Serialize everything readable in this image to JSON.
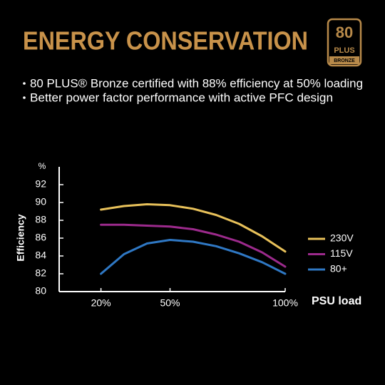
{
  "header": {
    "title": "ENERGY CONSERVATION",
    "badge": [
      "80",
      "PLUS",
      "BRONZE"
    ]
  },
  "bullets": [
    "80 PLUS® Bronze certified with 88% efficiency at 50% loading",
    "Better power factor performance with active PFC design"
  ],
  "chart_data": {
    "type": "line",
    "y_label": "Efficiency",
    "y_unit": "%",
    "x_label": "PSU load",
    "x": [
      20,
      30,
      40,
      50,
      60,
      70,
      80,
      90,
      100
    ],
    "xlim": [
      0,
      100
    ],
    "xticks": [
      {
        "value": 20,
        "label": "20%"
      },
      {
        "value": 50,
        "label": "50%"
      },
      {
        "value": 100,
        "label": "100%"
      }
    ],
    "ylim": [
      80,
      94
    ],
    "yticks": [
      80,
      82,
      84,
      86,
      88,
      90,
      92
    ],
    "legend": "right",
    "series": [
      {
        "name": "230V",
        "color": "#e8c15a",
        "values": [
          89.2,
          89.6,
          89.8,
          89.7,
          89.3,
          88.6,
          87.6,
          86.2,
          84.5
        ]
      },
      {
        "name": "115V",
        "color": "#9c2a8c",
        "values": [
          87.5,
          87.5,
          87.4,
          87.3,
          87.0,
          86.4,
          85.6,
          84.4,
          82.8
        ]
      },
      {
        "name": "80+",
        "color": "#2f78c4",
        "values": [
          82.0,
          84.2,
          85.4,
          85.8,
          85.6,
          85.1,
          84.3,
          83.3,
          82.0
        ]
      }
    ]
  }
}
